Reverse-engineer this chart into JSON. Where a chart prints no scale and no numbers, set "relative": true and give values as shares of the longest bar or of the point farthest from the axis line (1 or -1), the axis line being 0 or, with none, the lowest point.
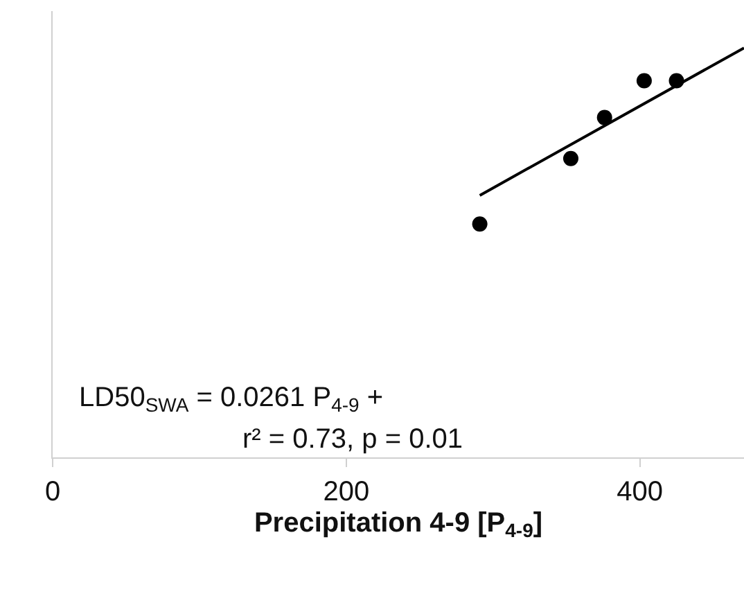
{
  "chart_data": {
    "type": "scatter",
    "relative": true,
    "xlabel": "Precipitation 4-9 [P$_{4-9}$]",
    "xlim": [
      0,
      471
    ],
    "xticks": [
      0,
      200,
      400
    ],
    "marker": "circle",
    "series": [
      {
        "color": "#000000",
        "x": [
          291,
          353,
          376,
          403,
          425
        ],
        "values": [
          0.57,
          0.73,
          0.83,
          0.92,
          0.92
        ]
      },
      {
        "type": "line",
        "marker": "none",
        "color": "#000000",
        "x": [
          291,
          471
        ],
        "values": [
          0.64,
          1.0
        ]
      }
    ],
    "annotations": [
      "LD50$_{SWA}$ = 0.0261 P$_{4-9}$ +",
      "r² = 0.73, p = 0.01"
    ]
  }
}
